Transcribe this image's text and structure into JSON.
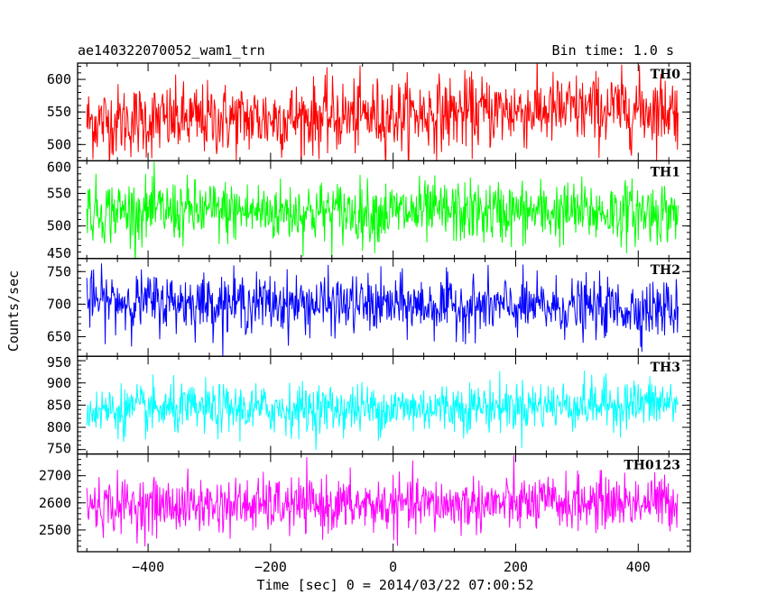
{
  "header": {
    "title": "ae140322070052_wam1_trn",
    "bin_time": "Bin time: 1.0 s"
  },
  "chart_data": {
    "type": "line",
    "xlabel": "Time [sec] 0 = 2014/03/22 07:00:52",
    "ylabel": "Counts/sec",
    "xlim": [
      -515,
      485
    ],
    "x_ticks": [
      -400,
      -200,
      0,
      200,
      400
    ],
    "x_tick_labels": [
      "−400",
      "−200",
      "0",
      "200",
      "400"
    ],
    "x_range_data": [
      -500,
      465
    ],
    "bin_time_s": 1.0,
    "panels": [
      {
        "name": "TH0",
        "color": "#ff0000",
        "ylim": [
          475,
          625
        ],
        "y_ticks": [
          500,
          550,
          600
        ],
        "trend": [
          [
            -500,
            535
          ],
          [
            -200,
            540
          ],
          [
            0,
            545
          ],
          [
            200,
            552
          ],
          [
            465,
            555
          ]
        ],
        "noise_sd": 28
      },
      {
        "name": "TH1",
        "color": "#00ff00",
        "ylim": [
          450,
          600
        ],
        "y_ticks": [
          450,
          500,
          550,
          600
        ],
        "trend": [
          [
            -500,
            523
          ],
          [
            0,
            521
          ],
          [
            465,
            521
          ]
        ],
        "noise_sd": 24
      },
      {
        "name": "TH2",
        "color": "#0000ff",
        "ylim": [
          620,
          770
        ],
        "y_ticks": [
          650,
          700,
          750
        ],
        "trend": [
          [
            -500,
            705
          ],
          [
            -250,
            702
          ],
          [
            0,
            698
          ],
          [
            250,
            695
          ],
          [
            465,
            692
          ]
        ],
        "noise_sd": 22
      },
      {
        "name": "TH3",
        "color": "#00ffff",
        "ylim": [
          740,
          960
        ],
        "y_ticks": [
          750,
          800,
          850,
          900,
          950
        ],
        "trend": [
          [
            -500,
            838
          ],
          [
            0,
            843
          ],
          [
            465,
            855
          ]
        ],
        "noise_sd": 28
      },
      {
        "name": "TH0123",
        "color": "#ff00ff",
        "ylim": [
          2420,
          2780
        ],
        "y_ticks": [
          2500,
          2600,
          2700
        ],
        "trend": [
          [
            -500,
            2590
          ],
          [
            0,
            2590
          ],
          [
            465,
            2605
          ]
        ],
        "noise_sd": 50
      }
    ]
  }
}
